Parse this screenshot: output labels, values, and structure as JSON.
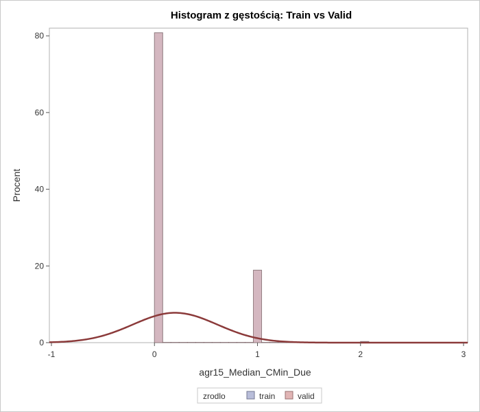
{
  "chart_data": {
    "type": "bar",
    "title": "Histogram z gęstością: Train vs Valid",
    "xlabel": "agr15_Median_CMin_Due",
    "ylabel": "Procent",
    "xlim": [
      -1.02,
      3.04
    ],
    "ylim": [
      0,
      82
    ],
    "xticks": [
      -1,
      0,
      1,
      2,
      3
    ],
    "yticks": [
      0,
      20,
      40,
      60,
      80
    ],
    "bin_width": 0.08,
    "bins": [
      0,
      0.08,
      0.16,
      0.24,
      0.32,
      0.4,
      0.48,
      0.56,
      0.64,
      0.72,
      0.8,
      0.88,
      0.96,
      1.04,
      1.12,
      1.2,
      1.28,
      1.36,
      1.44,
      1.52,
      1.6,
      1.68,
      1.76,
      1.84,
      1.92,
      2.0,
      2.08,
      2.16,
      2.24,
      2.32,
      2.4,
      2.48,
      2.56,
      2.64,
      2.72,
      2.8,
      2.88,
      2.96
    ],
    "series": [
      {
        "name": "train",
        "color": "#a6acd0",
        "values": [
          80.8,
          0,
          0,
          0,
          0,
          0,
          0,
          0,
          0,
          0,
          0,
          0,
          18.9,
          0,
          0,
          0,
          0,
          0,
          0,
          0,
          0,
          0,
          0,
          0,
          0,
          0.3,
          0,
          0,
          0,
          0,
          0,
          0,
          0,
          0,
          0,
          0,
          0,
          0
        ]
      },
      {
        "name": "valid",
        "color": "#d9a2a2",
        "values": [
          80.8,
          0,
          0,
          0,
          0,
          0,
          0,
          0,
          0,
          0,
          0,
          0,
          18.9,
          0,
          0,
          0,
          0,
          0,
          0,
          0,
          0,
          0,
          0,
          0,
          0,
          0.3,
          0,
          0,
          0,
          0,
          0,
          0,
          0,
          0,
          0,
          0,
          0,
          0
        ]
      }
    ],
    "density": {
      "type": "normal",
      "mean": 0.2,
      "sd": 0.41,
      "color": "#8b3a3a"
    },
    "legend": {
      "title": "zrodlo",
      "position": "bottom"
    },
    "grid": false
  }
}
